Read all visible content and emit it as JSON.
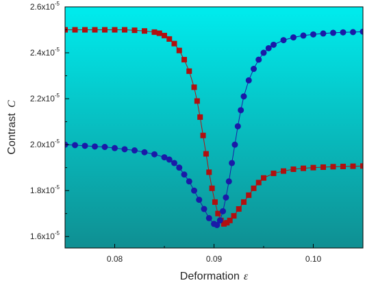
{
  "chart_data": {
    "type": "scatter",
    "title": "",
    "xlabel": "Deformation",
    "xlabel_symbol": "ε",
    "ylabel": "Contrast",
    "ylabel_symbol": "C",
    "xlim": [
      0.075,
      0.105
    ],
    "ylim": [
      1.55e-05,
      2.6e-05
    ],
    "x_ticks": [
      {
        "value": 0.08,
        "label": "0.08"
      },
      {
        "value": 0.09,
        "label": "0.09"
      },
      {
        "value": 0.1,
        "label": "0.10"
      }
    ],
    "y_ticks": [
      {
        "value": 1.6e-05,
        "mantissa": "1.6x10",
        "exp": "-5"
      },
      {
        "value": 1.8e-05,
        "mantissa": "1.8x10",
        "exp": "-5"
      },
      {
        "value": 2e-05,
        "mantissa": "2.0x10",
        "exp": "-5"
      },
      {
        "value": 2.2e-05,
        "mantissa": "2.2x10",
        "exp": "-5"
      },
      {
        "value": 2.4e-05,
        "mantissa": "2.4x10",
        "exp": "-5"
      },
      {
        "value": 2.6e-05,
        "mantissa": "2.6x10",
        "exp": "-5"
      }
    ],
    "background_gradient": [
      "#00ecee",
      "#0f8f92"
    ],
    "series": [
      {
        "marker": "square",
        "color": "#b01010",
        "line": true,
        "x": [
          0.075,
          0.076,
          0.077,
          0.078,
          0.079,
          0.08,
          0.081,
          0.082,
          0.083,
          0.084,
          0.0845,
          0.085,
          0.0855,
          0.086,
          0.0865,
          0.087,
          0.0875,
          0.088,
          0.0883,
          0.0886,
          0.0889,
          0.0892,
          0.0895,
          0.0898,
          0.0901,
          0.0904,
          0.0907,
          0.091,
          0.0913,
          0.0916,
          0.092,
          0.0925,
          0.093,
          0.0935,
          0.094,
          0.0945,
          0.095,
          0.096,
          0.097,
          0.098,
          0.099,
          0.1,
          0.101,
          0.102,
          0.103,
          0.104,
          0.105
        ],
        "y": [
          2.5e-05,
          2.5e-05,
          2.5e-05,
          2.5e-05,
          2.5e-05,
          2.5e-05,
          2.5e-05,
          2.498e-05,
          2.495e-05,
          2.49e-05,
          2.485e-05,
          2.475e-05,
          2.46e-05,
          2.44e-05,
          2.41e-05,
          2.37e-05,
          2.32e-05,
          2.25e-05,
          2.19e-05,
          2.12e-05,
          2.04e-05,
          1.96e-05,
          1.88e-05,
          1.81e-05,
          1.75e-05,
          1.7e-05,
          1.67e-05,
          1.655e-05,
          1.66e-05,
          1.67e-05,
          1.69e-05,
          1.72e-05,
          1.75e-05,
          1.78e-05,
          1.81e-05,
          1.835e-05,
          1.855e-05,
          1.875e-05,
          1.885e-05,
          1.893e-05,
          1.897e-05,
          1.9e-05,
          1.902e-05,
          1.904e-05,
          1.905e-05,
          1.906e-05,
          1.907e-05
        ]
      },
      {
        "marker": "circle",
        "color": "#1a1aa8",
        "line": true,
        "x": [
          0.075,
          0.076,
          0.077,
          0.078,
          0.079,
          0.08,
          0.081,
          0.082,
          0.083,
          0.084,
          0.085,
          0.0855,
          0.086,
          0.0865,
          0.087,
          0.0875,
          0.088,
          0.0885,
          0.089,
          0.0895,
          0.09,
          0.0903,
          0.0906,
          0.0909,
          0.0912,
          0.0915,
          0.0918,
          0.0921,
          0.0924,
          0.0927,
          0.093,
          0.0935,
          0.094,
          0.0945,
          0.095,
          0.0955,
          0.096,
          0.097,
          0.098,
          0.099,
          0.1,
          0.101,
          0.102,
          0.103,
          0.104,
          0.105
        ],
        "y": [
          2e-05,
          1.998e-05,
          1.995e-05,
          1.992e-05,
          1.99e-05,
          1.985e-05,
          1.98e-05,
          1.975e-05,
          1.967e-05,
          1.958e-05,
          1.945e-05,
          1.935e-05,
          1.92e-05,
          1.9e-05,
          1.87e-05,
          1.84e-05,
          1.8e-05,
          1.76e-05,
          1.72e-05,
          1.68e-05,
          1.655e-05,
          1.65e-05,
          1.67e-05,
          1.71e-05,
          1.77e-05,
          1.84e-05,
          1.92e-05,
          2e-05,
          2.08e-05,
          2.15e-05,
          2.21e-05,
          2.28e-05,
          2.33e-05,
          2.37e-05,
          2.4e-05,
          2.42e-05,
          2.435e-05,
          2.455e-05,
          2.467e-05,
          2.475e-05,
          2.48e-05,
          2.484e-05,
          2.487e-05,
          2.489e-05,
          2.49e-05,
          2.492e-05
        ]
      }
    ]
  }
}
